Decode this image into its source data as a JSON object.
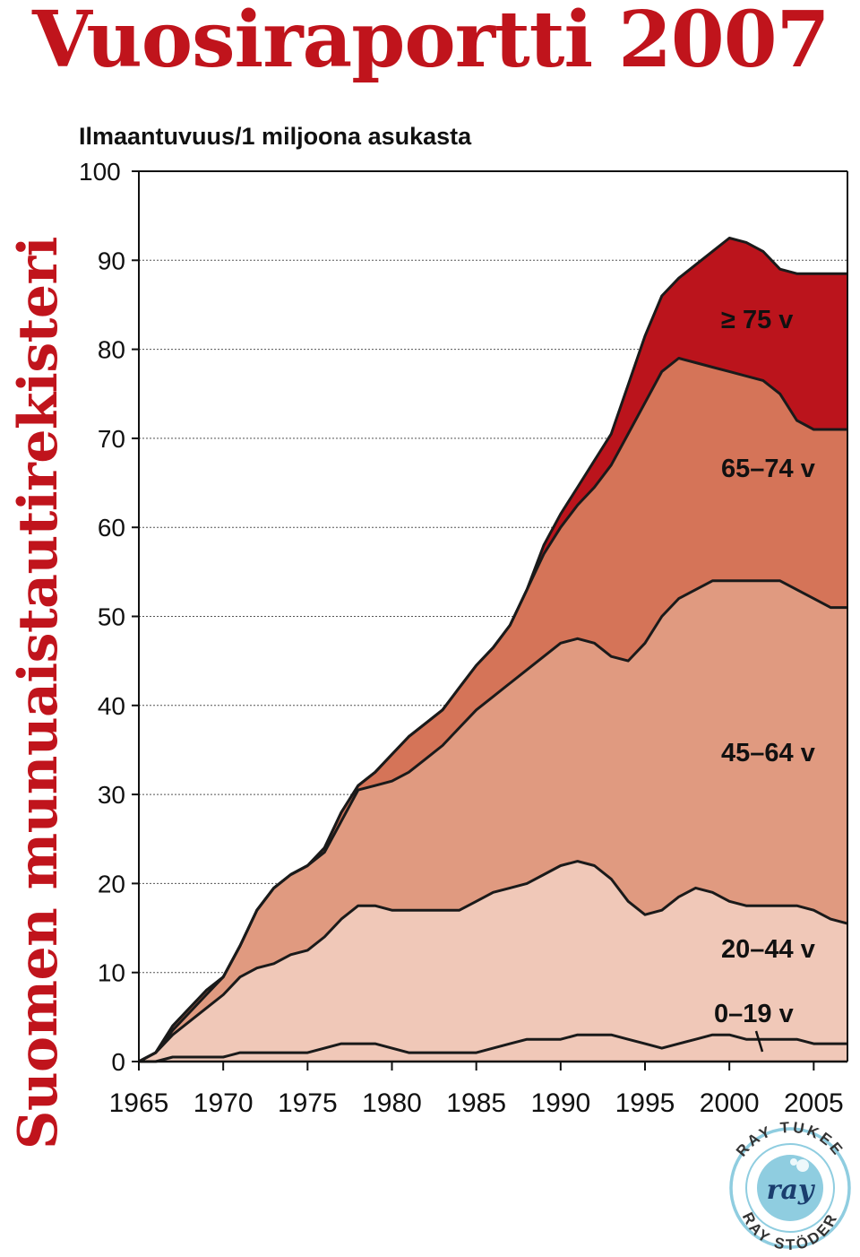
{
  "header": {
    "title": "Vuosiraportti 2007",
    "side_title": "Suomen munuaistautirekisteri"
  },
  "colors": {
    "band_0_19": "#f0c8b8",
    "band_20_44": "#f0c8b8",
    "band_45_64": "#e09a80",
    "band_65_74": "#d57458",
    "band_75_plus": "#bb141c",
    "title": "#c0141c"
  },
  "logo": {
    "text_top": "RAY TUKEE",
    "text_center": "ray",
    "text_bottom": "RAY STÖDER",
    "ring_color": "#8fcde0"
  },
  "chart_data": {
    "type": "area",
    "title": "",
    "ylabel": "Ilmaantuvuus/1 miljoona asukasta",
    "xlabel": "",
    "xlim": [
      1965,
      2007
    ],
    "ylim": [
      0,
      100
    ],
    "x_ticks": [
      1965,
      1970,
      1975,
      1980,
      1985,
      1990,
      1995,
      2000,
      2005
    ],
    "y_ticks": [
      0,
      10,
      20,
      30,
      40,
      50,
      60,
      70,
      80,
      90,
      100
    ],
    "grid": "horizontal dotted",
    "stacked": true,
    "x": [
      1965,
      1966,
      1967,
      1968,
      1969,
      1970,
      1971,
      1972,
      1973,
      1974,
      1975,
      1976,
      1977,
      1978,
      1979,
      1980,
      1981,
      1982,
      1983,
      1984,
      1985,
      1986,
      1987,
      1988,
      1989,
      1990,
      1991,
      1992,
      1993,
      1994,
      1995,
      1996,
      1997,
      1998,
      1999,
      2000,
      2001,
      2002,
      2003,
      2004,
      2005,
      2006,
      2007
    ],
    "series": [
      {
        "name": "0–19 v",
        "cumulative": [
          0,
          0,
          0.5,
          0.5,
          0.5,
          0.5,
          1,
          1,
          1,
          1,
          1,
          1.5,
          2,
          2,
          2,
          1.5,
          1,
          1,
          1,
          1,
          1,
          1.5,
          2,
          2.5,
          2.5,
          2.5,
          3,
          3,
          3,
          2.5,
          2,
          1.5,
          2,
          2.5,
          3,
          3,
          2.5,
          2.5,
          2.5,
          2.5,
          2,
          2,
          2
        ]
      },
      {
        "name": "20–44 v",
        "cumulative": [
          0,
          1,
          3,
          4.5,
          6,
          7.5,
          9.5,
          10.5,
          11,
          12,
          12.5,
          14,
          16,
          17.5,
          17.5,
          17,
          17,
          17,
          17,
          17,
          18,
          19,
          19.5,
          20,
          21,
          22,
          22.5,
          22,
          20.5,
          18,
          16.5,
          17,
          18.5,
          19.5,
          19,
          18,
          17.5,
          17.5,
          17.5,
          17.5,
          17,
          16,
          15.5
        ]
      },
      {
        "name": "45–64 v",
        "cumulative": [
          0,
          1,
          3.5,
          5.5,
          7.5,
          9.5,
          13,
          17,
          19.5,
          21,
          22,
          23.5,
          27,
          30.5,
          31,
          31.5,
          32.5,
          34,
          35.5,
          37.5,
          39.5,
          41,
          42.5,
          44,
          45.5,
          47,
          47.5,
          47,
          45.5,
          45,
          47,
          50,
          52,
          53,
          54,
          54,
          54,
          54,
          54,
          53,
          52,
          51,
          51
        ]
      },
      {
        "name": "65–74 v",
        "cumulative": [
          0,
          1,
          4,
          6,
          8,
          9.5,
          13,
          17,
          19.5,
          21,
          22,
          24,
          28,
          31,
          32.5,
          34.5,
          36.5,
          38,
          39.5,
          42,
          44.5,
          46.5,
          49,
          53,
          57,
          60,
          62.5,
          64.5,
          67,
          70.5,
          74,
          77.5,
          79,
          78.5,
          78,
          77.5,
          77,
          76.5,
          75,
          72,
          71,
          71,
          71
        ]
      },
      {
        "name": "≥ 75 v",
        "cumulative": [
          0,
          1,
          4,
          6,
          8,
          9.5,
          13,
          17,
          19.5,
          21,
          22,
          24,
          28,
          31,
          32.5,
          34.5,
          36.5,
          38,
          39.5,
          42,
          44.5,
          46.5,
          49,
          53,
          58,
          61.5,
          64.5,
          67.5,
          70.5,
          76,
          81.5,
          86,
          88,
          89.5,
          91,
          92.5,
          92,
          91,
          89,
          88.5,
          88.5,
          88.5,
          88.5
        ]
      }
    ],
    "series_labels": [
      "≥ 75 v",
      "65–74 v",
      "45–64 v",
      "20–44 v",
      "0–19 v"
    ]
  }
}
